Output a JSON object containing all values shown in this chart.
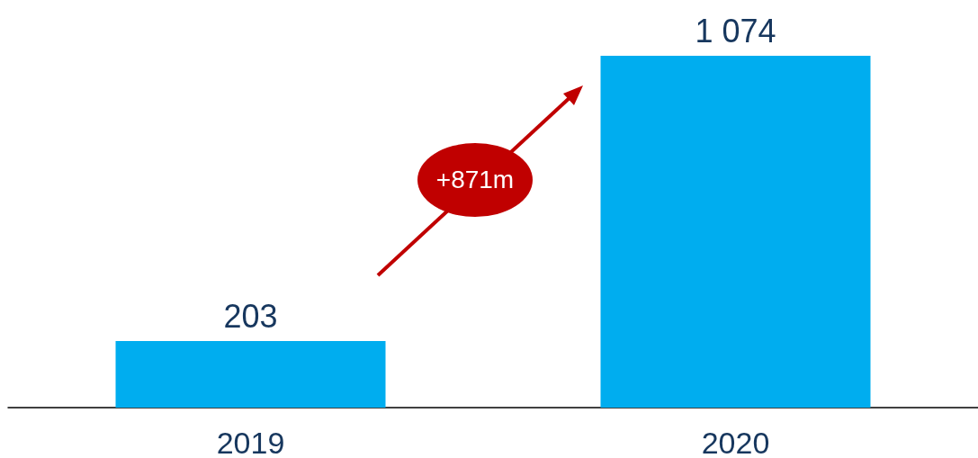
{
  "chart_data": {
    "type": "bar",
    "categories": [
      "2019",
      "2020"
    ],
    "values": [
      203,
      1074
    ],
    "value_labels": [
      "203",
      "1 074"
    ],
    "color": "#00adef",
    "annotations": [
      "+871m"
    ]
  }
}
